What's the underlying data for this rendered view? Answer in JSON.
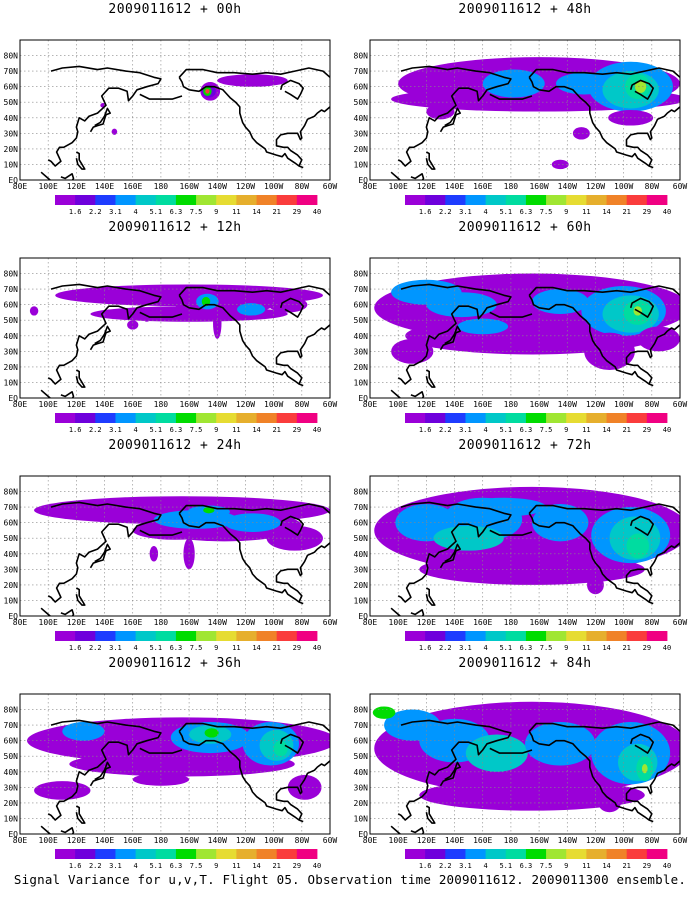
{
  "footer": "Signal Variance for u,v,T. Flight 05. Observation time 2009011612. 2009011300 ensemble.",
  "colorbar": {
    "levels": [
      "1.6",
      "2.2",
      "3.1",
      "4",
      "5.1",
      "6.3",
      "7.5",
      "9",
      "11",
      "14",
      "21",
      "29",
      "40"
    ],
    "colors": [
      "#9a00d8",
      "#6e00dc",
      "#1e3cff",
      "#0096ff",
      "#00c8c8",
      "#00dca0",
      "#00dc00",
      "#a0e632",
      "#e6dc32",
      "#e6af2d",
      "#f08228",
      "#fa3c3c",
      "#f00082"
    ]
  },
  "axes": {
    "lat_labels": [
      "80N",
      "70N",
      "60N",
      "50N",
      "40N",
      "30N",
      "20N",
      "10N",
      "EQ"
    ],
    "lon_labels": [
      "80E",
      "100E",
      "120E",
      "140E",
      "160E",
      "180",
      "160W",
      "140W",
      "120W",
      "100W",
      "80W",
      "60W"
    ]
  },
  "chart_data": [
    {
      "type": "heatmap",
      "title": "2009011612 + 00h",
      "lead_hours": 0
    },
    {
      "type": "heatmap",
      "title": "2009011612 + 48h",
      "lead_hours": 48
    },
    {
      "type": "heatmap",
      "title": "2009011612 + 12h",
      "lead_hours": 12
    },
    {
      "type": "heatmap",
      "title": "2009011612 + 60h",
      "lead_hours": 60
    },
    {
      "type": "heatmap",
      "title": "2009011612 + 24h",
      "lead_hours": 24
    },
    {
      "type": "heatmap",
      "title": "2009011612 + 72h",
      "lead_hours": 72
    },
    {
      "type": "heatmap",
      "title": "2009011612 + 36h",
      "lead_hours": 36
    },
    {
      "type": "heatmap",
      "title": "2009011612 + 84h",
      "lead_hours": 84
    }
  ]
}
